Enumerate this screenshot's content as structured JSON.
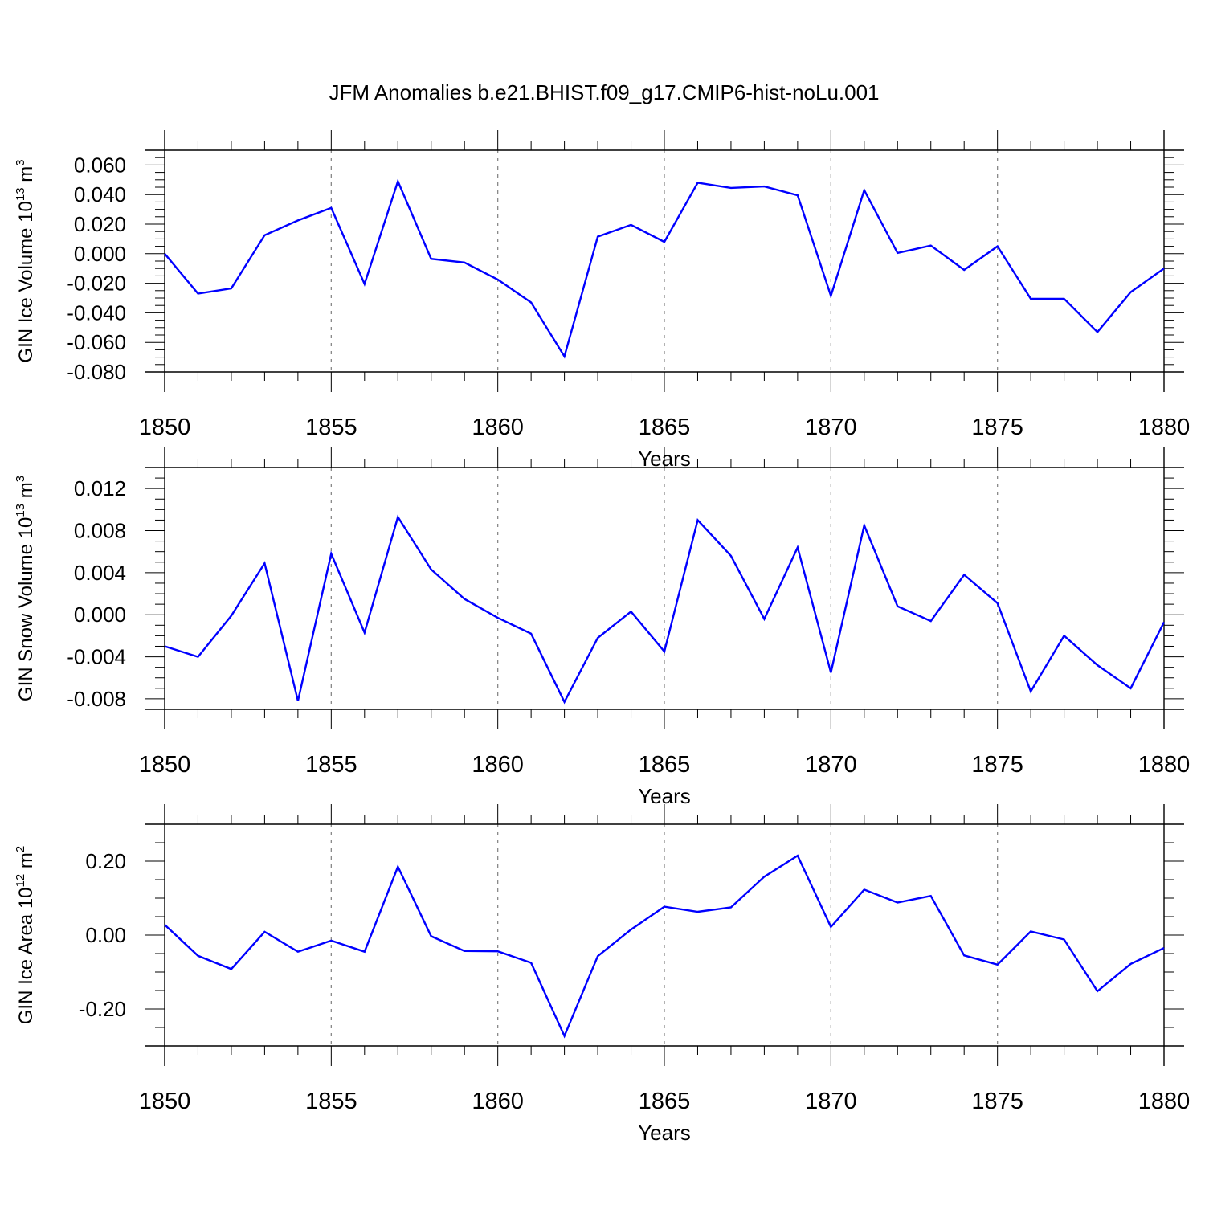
{
  "title": "JFM Anomalies b.e21.BHIST.f09_g17.CMIP6-hist-noLu.001",
  "line_color": "#0000ff",
  "chart_data": [
    {
      "type": "line",
      "ylabel_main": "GIN Ice Volume 10",
      "ylabel_exp": "13",
      "ylabel_unit": "m",
      "ylabel_unit_exp": "3",
      "xlabel": "Years",
      "xlim": [
        1850,
        1880
      ],
      "ylim": [
        -0.08,
        0.07
      ],
      "yticks": [
        0.06,
        0.04,
        0.02,
        0.0,
        -0.02,
        -0.04,
        -0.06,
        -0.08
      ],
      "ytick_labels": [
        "0.060",
        "0.040",
        "0.020",
        "0.000",
        "-0.020",
        "-0.040",
        "-0.060",
        "-0.080"
      ],
      "xticks": [
        1850,
        1855,
        1860,
        1865,
        1870,
        1875,
        1880
      ],
      "xtick_labels": [
        "1850",
        "1855",
        "1860",
        "1865",
        "1870",
        "1875",
        "1880"
      ],
      "x": [
        1850,
        1851,
        1852,
        1853,
        1854,
        1855,
        1856,
        1857,
        1858,
        1859,
        1860,
        1861,
        1862,
        1863,
        1864,
        1865,
        1866,
        1867,
        1868,
        1869,
        1870,
        1871,
        1872,
        1873,
        1874,
        1875,
        1876,
        1877,
        1878,
        1879,
        1880
      ],
      "values": [
        0.0,
        -0.027,
        -0.0235,
        0.0125,
        0.0225,
        0.031,
        -0.0205,
        0.049,
        -0.0035,
        -0.006,
        -0.0175,
        -0.033,
        -0.0695,
        0.0115,
        0.0195,
        0.008,
        0.048,
        0.0445,
        0.0455,
        0.0395,
        -0.0285,
        0.043,
        0.0005,
        0.0055,
        -0.011,
        0.005,
        -0.0305,
        -0.0305,
        -0.053,
        -0.026,
        -0.01
      ]
    },
    {
      "type": "line",
      "ylabel_main": "GIN Snow Volume 10",
      "ylabel_exp": "13",
      "ylabel_unit": "m",
      "ylabel_unit_exp": "3",
      "xlabel": "Years",
      "xlim": [
        1850,
        1880
      ],
      "ylim": [
        -0.009,
        0.014
      ],
      "yticks": [
        0.012,
        0.008,
        0.004,
        0.0,
        -0.004,
        -0.008
      ],
      "ytick_labels": [
        "0.012",
        "0.008",
        "0.004",
        "0.000",
        "-0.004",
        "-0.008"
      ],
      "xticks": [
        1850,
        1855,
        1860,
        1865,
        1870,
        1875,
        1880
      ],
      "xtick_labels": [
        "1850",
        "1855",
        "1860",
        "1865",
        "1870",
        "1875",
        "1880"
      ],
      "x": [
        1850,
        1851,
        1852,
        1853,
        1854,
        1855,
        1856,
        1857,
        1858,
        1859,
        1860,
        1861,
        1862,
        1863,
        1864,
        1865,
        1866,
        1867,
        1868,
        1869,
        1870,
        1871,
        1872,
        1873,
        1874,
        1875,
        1876,
        1877,
        1878,
        1879,
        1880
      ],
      "values": [
        -0.003,
        -0.004,
        -0.0001,
        0.0049,
        -0.0082,
        0.0058,
        -0.0017,
        0.0093,
        0.0043,
        0.0015,
        -0.0003,
        -0.0018,
        -0.0083,
        -0.0022,
        0.0003,
        -0.0035,
        0.009,
        0.0056,
        -0.0004,
        0.0064,
        -0.0055,
        0.0085,
        0.0008,
        -0.0006,
        0.0038,
        0.0011,
        -0.0073,
        -0.002,
        -0.0048,
        -0.007,
        -0.0007
      ]
    },
    {
      "type": "line",
      "ylabel_main": "GIN Ice Area 10",
      "ylabel_exp": "12",
      "ylabel_unit": "m",
      "ylabel_unit_exp": "2",
      "xlabel": "Years",
      "xlim": [
        1850,
        1880
      ],
      "ylim": [
        -0.3,
        0.3
      ],
      "yticks": [
        0.2,
        0.0,
        -0.2
      ],
      "ytick_labels": [
        "0.20",
        "0.00",
        "-0.20"
      ],
      "xticks": [
        1850,
        1855,
        1860,
        1865,
        1870,
        1875,
        1880
      ],
      "xtick_labels": [
        "1850",
        "1855",
        "1860",
        "1865",
        "1870",
        "1875",
        "1880"
      ],
      "x": [
        1850,
        1851,
        1852,
        1853,
        1854,
        1855,
        1856,
        1857,
        1858,
        1859,
        1860,
        1861,
        1862,
        1863,
        1864,
        1865,
        1866,
        1867,
        1868,
        1869,
        1870,
        1871,
        1872,
        1873,
        1874,
        1875,
        1876,
        1877,
        1878,
        1879,
        1880
      ],
      "values": [
        0.028,
        -0.056,
        -0.092,
        0.009,
        -0.045,
        -0.015,
        -0.045,
        0.185,
        -0.003,
        -0.043,
        -0.044,
        -0.075,
        -0.273,
        -0.057,
        0.015,
        0.077,
        0.063,
        0.075,
        0.158,
        0.215,
        0.022,
        0.123,
        0.088,
        0.106,
        -0.055,
        -0.08,
        0.01,
        -0.012,
        -0.152,
        -0.078,
        -0.035
      ]
    }
  ]
}
